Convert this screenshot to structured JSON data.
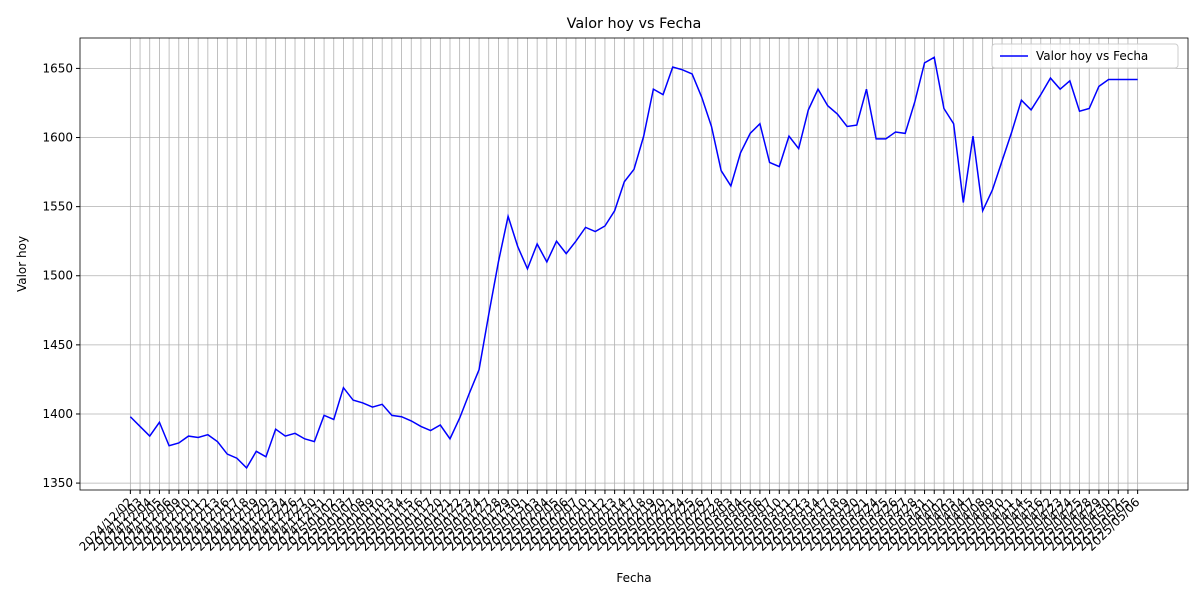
{
  "chart_data": {
    "type": "line",
    "title": "Valor hoy vs Fecha",
    "xlabel": "Fecha",
    "ylabel": "Valor hoy",
    "categories": [
      "2024/12/02",
      "2024/12/03",
      "2024/12/04",
      "2024/12/05",
      "2024/12/06",
      "2024/12/09",
      "2024/12/10",
      "2024/12/11",
      "2024/12/12",
      "2024/12/13",
      "2024/12/16",
      "2024/12/17",
      "2024/12/18",
      "2024/12/19",
      "2024/12/20",
      "2024/12/23",
      "2024/12/24",
      "2024/12/26",
      "2024/12/27",
      "2024/12/30",
      "2024/12/31",
      "2025/01/02",
      "2025/01/03",
      "2025/01/07",
      "2025/01/08",
      "2025/01/09",
      "2025/01/10",
      "2025/01/13",
      "2025/01/14",
      "2025/01/15",
      "2025/01/16",
      "2025/01/17",
      "2025/01/20",
      "2025/01/21",
      "2025/01/22",
      "2025/01/23",
      "2025/01/24",
      "2025/01/27",
      "2025/01/28",
      "2025/01/29",
      "2025/01/30",
      "2025/01/31",
      "2025/02/03",
      "2025/02/04",
      "2025/02/05",
      "2025/02/06",
      "2025/02/07",
      "2025/02/10",
      "2025/02/11",
      "2025/02/12",
      "2025/02/13",
      "2025/02/14",
      "2025/02/17",
      "2025/02/18",
      "2025/02/19",
      "2025/02/20",
      "2025/02/21",
      "2025/02/24",
      "2025/02/25",
      "2025/02/26",
      "2025/02/27",
      "2025/02/28",
      "2025/03/03",
      "2025/03/04",
      "2025/03/05",
      "2025/03/06",
      "2025/03/07",
      "2025/03/10",
      "2025/03/11",
      "2025/03/12",
      "2025/03/13",
      "2025/03/14",
      "2025/03/17",
      "2025/03/18",
      "2025/03/19",
      "2025/03/20",
      "2025/03/21",
      "2025/03/24",
      "2025/03/25",
      "2025/03/26",
      "2025/03/27",
      "2025/03/28",
      "2025/03/31",
      "2025/04/01",
      "2025/04/02",
      "2025/04/03",
      "2025/04/04",
      "2025/04/07",
      "2025/04/08",
      "2025/04/09",
      "2025/04/10",
      "2025/04/11",
      "2025/04/14",
      "2025/04/15",
      "2025/04/16",
      "2025/04/22",
      "2025/04/23",
      "2025/04/24",
      "2025/04/25",
      "2025/04/28",
      "2025/04/29",
      "2025/04/30",
      "2025/05/02",
      "2025/05/05",
      "2025/05/06"
    ],
    "series": [
      {
        "name": "Valor hoy vs Fecha",
        "color": "#0000ff",
        "values": [
          1398,
          1391,
          1384,
          1394,
          1377,
          1379,
          1384,
          1383,
          1385,
          1380,
          1371,
          1368,
          1361,
          1373,
          1369,
          1389,
          1384,
          1386,
          1382,
          1380,
          1399,
          1396,
          1419,
          1410,
          1408,
          1405,
          1407,
          1399,
          1398,
          1395,
          1391,
          1388,
          1392,
          1382,
          1397,
          1415,
          1432,
          1472,
          1510,
          1543,
          1521,
          1505,
          1523,
          1510,
          1525,
          1516,
          1525,
          1535,
          1532,
          1536,
          1547,
          1568,
          1577,
          1601,
          1635,
          1631,
          1651,
          1649,
          1646,
          1629,
          1608,
          1576,
          1565,
          1589,
          1603,
          1610,
          1582,
          1579,
          1601,
          1592,
          1620,
          1635,
          1623,
          1617,
          1608,
          1609,
          1635,
          1599,
          1599,
          1604,
          1603,
          1626,
          1654,
          1658,
          1621,
          1610,
          1553,
          1601,
          1547,
          1562,
          1583,
          1604,
          1627,
          1620,
          1631,
          1643,
          1635,
          1641,
          1619,
          1621,
          1637,
          1642,
          1642,
          1642,
          1642
        ]
      }
    ],
    "ylim": [
      1345,
      1672
    ],
    "yticks": [
      1350,
      1400,
      1450,
      1500,
      1550,
      1600,
      1650
    ],
    "grid": true,
    "legend": "upper right"
  }
}
